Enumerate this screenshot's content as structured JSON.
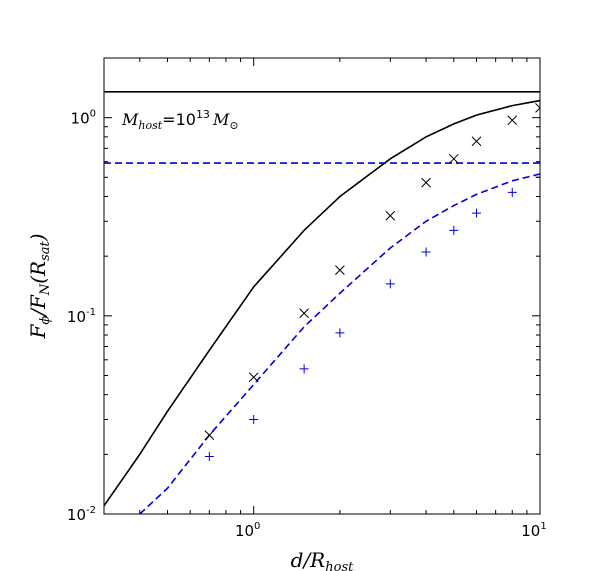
{
  "chart_data": {
    "type": "line",
    "xscale": "log",
    "yscale": "log",
    "xlim": [
      0.3,
      10
    ],
    "ylim": [
      0.01,
      2
    ],
    "xlabel": {
      "main": "d/R",
      "sub": "host"
    },
    "ylabel": {
      "main": "F",
      "sub1": "ϕ",
      "mid": "/F",
      "sub2": "N",
      "tail": "(R",
      "sub3": "sat",
      "end": ")"
    },
    "x_ticks": [
      {
        "value": 1,
        "base": "10",
        "exp": "0"
      },
      {
        "value": 10,
        "base": "10",
        "exp": "1"
      }
    ],
    "y_ticks": [
      {
        "value": 0.01,
        "base": "10",
        "exp": "-2"
      },
      {
        "value": 0.1,
        "base": "10",
        "exp": "-1"
      },
      {
        "value": 1,
        "base": "10",
        "exp": "0"
      }
    ],
    "annotation": {
      "m": "M",
      "m_sub": "host",
      "eq": "=",
      "num": "10",
      "num_exp": "13",
      "m2": "M",
      "m2_sub": "⊙"
    },
    "colors": {
      "black": "#000000",
      "blue": "#0000dd"
    },
    "series": [
      {
        "name": "black-solid-curve",
        "style": "solid",
        "color": "#000000",
        "x": [
          0.3,
          0.4,
          0.5,
          0.7,
          1.0,
          1.5,
          2.0,
          3.0,
          4.0,
          5.0,
          6.0,
          8.0,
          10.0
        ],
        "y": [
          0.011,
          0.02,
          0.033,
          0.067,
          0.14,
          0.27,
          0.4,
          0.62,
          0.8,
          0.93,
          1.03,
          1.15,
          1.22
        ]
      },
      {
        "name": "black-solid-horizontal",
        "style": "solid",
        "color": "#000000",
        "x": [
          0.3,
          10
        ],
        "y": [
          1.35,
          1.35
        ]
      },
      {
        "name": "blue-dashed-curve",
        "style": "dashed",
        "color": "#0000dd",
        "x": [
          0.4,
          0.5,
          0.7,
          1.0,
          1.5,
          2.0,
          3.0,
          4.0,
          5.0,
          6.0,
          8.0,
          10.0
        ],
        "y": [
          0.01,
          0.0135,
          0.025,
          0.045,
          0.088,
          0.13,
          0.22,
          0.3,
          0.36,
          0.41,
          0.48,
          0.52
        ]
      },
      {
        "name": "blue-dashed-horizontal",
        "style": "dashed",
        "color": "#0000dd",
        "x": [
          0.3,
          10
        ],
        "y": [
          0.59,
          0.59
        ]
      },
      {
        "name": "black-x-markers",
        "style": "x",
        "color": "#000000",
        "x": [
          0.7,
          1.0,
          1.5,
          2.0,
          3.0,
          4.0,
          5.0,
          6.0,
          8.0,
          10.0
        ],
        "y": [
          0.025,
          0.049,
          0.103,
          0.17,
          0.32,
          0.47,
          0.62,
          0.76,
          0.97,
          1.12
        ]
      },
      {
        "name": "blue-plus-markers",
        "style": "+",
        "color": "#0000dd",
        "x": [
          0.7,
          1.0,
          1.5,
          2.0,
          3.0,
          4.0,
          5.0,
          6.0,
          8.0,
          10.0
        ],
        "y": [
          0.0195,
          0.03,
          0.054,
          0.082,
          0.145,
          0.21,
          0.27,
          0.33,
          0.42,
          0.5
        ]
      }
    ]
  }
}
